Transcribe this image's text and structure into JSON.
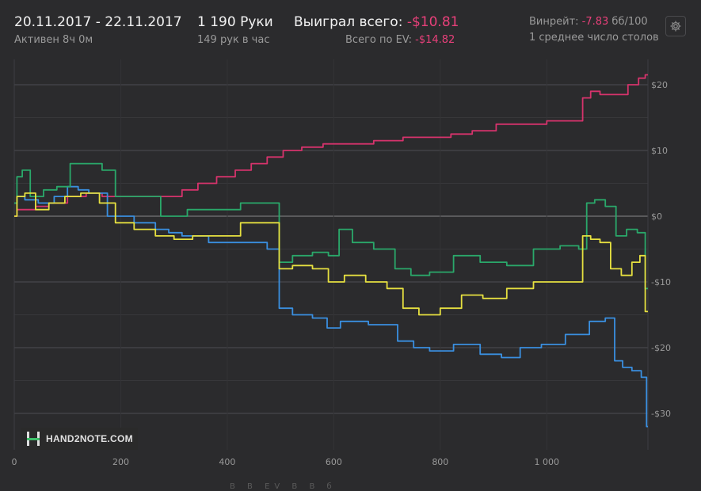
{
  "header": {
    "date_range": "20.11.2017 - 22.11.2017",
    "active": "Активен 8ч 0м",
    "hands": "1 190 Руки",
    "hands_per_hour": "149 рук в час",
    "won_label": "Выиграл всего: ",
    "won_value": "-$10.81",
    "ev_label": "Всего по EV: ",
    "ev_value": "-$14.82",
    "winrate_label": "Винрейт: ",
    "winrate_value": "-7.83",
    "winrate_unit": " бб/100",
    "tables": "1 среднее число столов",
    "settings_icon": "gear-icon"
  },
  "logo": {
    "text": "HAND2NOTE.COM",
    "icon": "h2n-logo-icon",
    "accent": "#3fbf6a"
  },
  "chart_data": {
    "type": "line",
    "xlim": [
      0,
      1190
    ],
    "ylim": [
      -32,
      22
    ],
    "x_ticks": [
      0,
      200,
      400,
      600,
      800,
      1000
    ],
    "x_tick_labels": [
      "0",
      "200",
      "400",
      "600",
      "800",
      "1 000"
    ],
    "y_ticks": [
      20,
      10,
      0,
      -10,
      -20,
      -30
    ],
    "y_tick_labels": [
      "$20",
      "$10",
      "$0",
      "-$10",
      "-$20",
      "-$30"
    ],
    "grid": true,
    "series": [
      {
        "color": "#d6336c",
        "points": [
          [
            0,
            0
          ],
          [
            10,
            1
          ],
          [
            30,
            1
          ],
          [
            50,
            1.5
          ],
          [
            80,
            2
          ],
          [
            120,
            3
          ],
          [
            150,
            3.5
          ],
          [
            180,
            3
          ],
          [
            250,
            3
          ],
          [
            300,
            3
          ],
          [
            330,
            4
          ],
          [
            360,
            5
          ],
          [
            400,
            6
          ],
          [
            430,
            7
          ],
          [
            460,
            8
          ],
          [
            490,
            9
          ],
          [
            520,
            10
          ],
          [
            560,
            10.5
          ],
          [
            600,
            11
          ],
          [
            650,
            11
          ],
          [
            700,
            11.5
          ],
          [
            760,
            12
          ],
          [
            800,
            12
          ],
          [
            840,
            12.5
          ],
          [
            880,
            13
          ],
          [
            930,
            14
          ],
          [
            980,
            14
          ],
          [
            1020,
            14.5
          ],
          [
            1060,
            14.5
          ],
          [
            1075,
            18
          ],
          [
            1090,
            19
          ],
          [
            1110,
            18.5
          ],
          [
            1140,
            18.5
          ],
          [
            1165,
            20
          ],
          [
            1180,
            21
          ],
          [
            1190,
            21.5
          ]
        ]
      },
      {
        "color": "#3a8fe0",
        "points": [
          [
            0,
            2
          ],
          [
            10,
            3
          ],
          [
            30,
            2.5
          ],
          [
            60,
            2
          ],
          [
            90,
            3
          ],
          [
            110,
            4.5
          ],
          [
            130,
            4
          ],
          [
            150,
            3.5
          ],
          [
            200,
            0
          ],
          [
            250,
            -1
          ],
          [
            280,
            -2
          ],
          [
            300,
            -2.5
          ],
          [
            330,
            -3
          ],
          [
            400,
            -4
          ],
          [
            460,
            -4
          ],
          [
            490,
            -5
          ],
          [
            505,
            -14
          ],
          [
            540,
            -15
          ],
          [
            580,
            -15.5
          ],
          [
            595,
            -17
          ],
          [
            630,
            -16
          ],
          [
            700,
            -16.5
          ],
          [
            740,
            -19
          ],
          [
            760,
            -20
          ],
          [
            800,
            -20.5
          ],
          [
            850,
            -19.5
          ],
          [
            900,
            -21
          ],
          [
            930,
            -21.5
          ],
          [
            970,
            -20
          ],
          [
            1010,
            -19.5
          ],
          [
            1060,
            -18
          ],
          [
            1100,
            -16
          ],
          [
            1120,
            -15.5
          ],
          [
            1135,
            -22
          ],
          [
            1150,
            -23
          ],
          [
            1170,
            -23.5
          ],
          [
            1185,
            -24.5
          ],
          [
            1190,
            -32
          ]
        ]
      },
      {
        "color": "#2aa86a",
        "points": [
          [
            0,
            2
          ],
          [
            10,
            6
          ],
          [
            20,
            7
          ],
          [
            40,
            3
          ],
          [
            70,
            4
          ],
          [
            90,
            4.5
          ],
          [
            120,
            8
          ],
          [
            150,
            8
          ],
          [
            180,
            7
          ],
          [
            200,
            3
          ],
          [
            250,
            3
          ],
          [
            300,
            0
          ],
          [
            350,
            1
          ],
          [
            400,
            1
          ],
          [
            450,
            2
          ],
          [
            490,
            2
          ],
          [
            505,
            -7
          ],
          [
            540,
            -6
          ],
          [
            580,
            -5.5
          ],
          [
            600,
            -6
          ],
          [
            620,
            -2
          ],
          [
            650,
            -4
          ],
          [
            700,
            -5
          ],
          [
            730,
            -8
          ],
          [
            760,
            -9
          ],
          [
            800,
            -8.5
          ],
          [
            850,
            -6
          ],
          [
            900,
            -7
          ],
          [
            950,
            -7.5
          ],
          [
            1000,
            -5
          ],
          [
            1050,
            -4.5
          ],
          [
            1070,
            -5
          ],
          [
            1080,
            2
          ],
          [
            1100,
            2.5
          ],
          [
            1120,
            1.5
          ],
          [
            1140,
            -3
          ],
          [
            1160,
            -2
          ],
          [
            1180,
            -2.5
          ],
          [
            1190,
            -11
          ]
        ]
      },
      {
        "color": "#e6e040",
        "points": [
          [
            0,
            0
          ],
          [
            10,
            3
          ],
          [
            30,
            3.5
          ],
          [
            50,
            1
          ],
          [
            80,
            2
          ],
          [
            110,
            3
          ],
          [
            140,
            3.5
          ],
          [
            180,
            2
          ],
          [
            200,
            -1
          ],
          [
            250,
            -2
          ],
          [
            280,
            -3
          ],
          [
            320,
            -3.5
          ],
          [
            350,
            -3
          ],
          [
            400,
            -3
          ],
          [
            450,
            -1
          ],
          [
            490,
            -1
          ],
          [
            505,
            -8
          ],
          [
            540,
            -7.5
          ],
          [
            580,
            -8
          ],
          [
            600,
            -10
          ],
          [
            640,
            -9
          ],
          [
            680,
            -10
          ],
          [
            720,
            -11
          ],
          [
            740,
            -14
          ],
          [
            780,
            -15
          ],
          [
            820,
            -14
          ],
          [
            860,
            -12
          ],
          [
            900,
            -12.5
          ],
          [
            950,
            -11
          ],
          [
            1000,
            -10
          ],
          [
            1060,
            -10
          ],
          [
            1075,
            -3
          ],
          [
            1090,
            -3.5
          ],
          [
            1110,
            -4
          ],
          [
            1130,
            -8
          ],
          [
            1150,
            -9
          ],
          [
            1170,
            -7
          ],
          [
            1180,
            -6
          ],
          [
            1190,
            -14.5
          ]
        ]
      }
    ]
  },
  "bottom_fragment": "В В EV В В б"
}
